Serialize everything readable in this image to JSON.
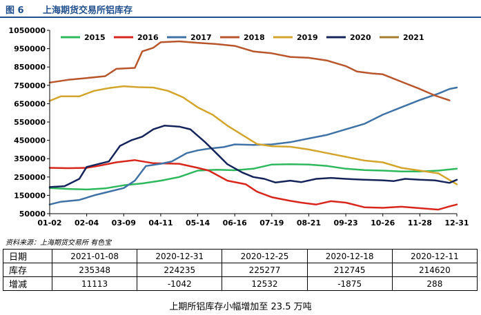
{
  "figure": {
    "number": "图 6",
    "title": "上海期货交易所铝库存",
    "source": "资料来源：上海期货交易所    有色宝",
    "caption": "上期所铝库存小幅增加至 23.5 万吨"
  },
  "chart_data": {
    "type": "line",
    "x_ticks": [
      "01-02",
      "02-04",
      "03-09",
      "04-11",
      "05-14",
      "06-16",
      "07-19",
      "08-21",
      "09-23",
      "10-26",
      "11-28",
      "12-31"
    ],
    "ylim": [
      50000,
      1050000
    ],
    "y_ticks": [
      50000,
      150000,
      250000,
      350000,
      450000,
      550000,
      650000,
      750000,
      850000,
      950000,
      1050000
    ],
    "y_tick_labels": [
      "50000",
      "150000",
      "250000",
      "350000",
      "450000",
      "550000",
      "650000",
      "750000",
      "850000",
      "950000",
      "1050000"
    ],
    "legend_position": "top",
    "grid": false,
    "series": [
      {
        "name": "2015",
        "color": "#2eb85c",
        "points": [
          [
            0,
            190000
          ],
          [
            0.5,
            185000
          ],
          [
            1,
            182000
          ],
          [
            1.5,
            188000
          ],
          [
            2,
            205000
          ],
          [
            2.5,
            215000
          ],
          [
            3,
            230000
          ],
          [
            3.5,
            250000
          ],
          [
            4,
            285000
          ],
          [
            4.5,
            290000
          ],
          [
            5,
            287000
          ],
          [
            5.5,
            295000
          ],
          [
            6,
            318000
          ],
          [
            6.5,
            320000
          ],
          [
            7,
            318000
          ],
          [
            7.5,
            310000
          ],
          [
            8,
            295000
          ],
          [
            8.5,
            288000
          ],
          [
            9,
            285000
          ],
          [
            9.5,
            280000
          ],
          [
            10,
            280000
          ],
          [
            10.5,
            285000
          ],
          [
            11,
            295000
          ]
        ]
      },
      {
        "name": "2016",
        "color": "#d9261c",
        "points": [
          [
            0,
            300000
          ],
          [
            0.5,
            298000
          ],
          [
            1,
            300000
          ],
          [
            1.3,
            310000
          ],
          [
            1.8,
            330000
          ],
          [
            2.3,
            342000
          ],
          [
            2.8,
            325000
          ],
          [
            3.5,
            322000
          ],
          [
            4,
            300000
          ],
          [
            4.3,
            285000
          ],
          [
            4.8,
            230000
          ],
          [
            5.3,
            210000
          ],
          [
            5.6,
            170000
          ],
          [
            6,
            140000
          ],
          [
            6.5,
            120000
          ],
          [
            6.8,
            110000
          ],
          [
            7.2,
            100000
          ],
          [
            7.6,
            118000
          ],
          [
            8,
            110000
          ],
          [
            8.5,
            85000
          ],
          [
            9,
            82000
          ],
          [
            9.5,
            88000
          ],
          [
            10,
            80000
          ],
          [
            10.5,
            72000
          ],
          [
            10.8,
            90000
          ],
          [
            11,
            100000
          ]
        ]
      },
      {
        "name": "2017",
        "color": "#3f72a6",
        "points": [
          [
            0,
            100000
          ],
          [
            0.3,
            115000
          ],
          [
            0.8,
            125000
          ],
          [
            1.2,
            150000
          ],
          [
            1.6,
            170000
          ],
          [
            2,
            190000
          ],
          [
            2.3,
            230000
          ],
          [
            2.6,
            310000
          ],
          [
            3,
            322000
          ],
          [
            3.3,
            335000
          ],
          [
            3.7,
            380000
          ],
          [
            4,
            395000
          ],
          [
            4.3,
            405000
          ],
          [
            4.7,
            413000
          ],
          [
            5,
            428000
          ],
          [
            5.5,
            425000
          ],
          [
            6,
            428000
          ],
          [
            6.5,
            440000
          ],
          [
            7,
            460000
          ],
          [
            7.5,
            480000
          ],
          [
            8,
            510000
          ],
          [
            8.5,
            540000
          ],
          [
            9,
            590000
          ],
          [
            9.5,
            630000
          ],
          [
            10,
            670000
          ],
          [
            10.5,
            705000
          ],
          [
            10.8,
            730000
          ],
          [
            11,
            738000
          ]
        ]
      },
      {
        "name": "2018",
        "color": "#b8552a",
        "points": [
          [
            0,
            765000
          ],
          [
            0.5,
            780000
          ],
          [
            1,
            790000
          ],
          [
            1.5,
            800000
          ],
          [
            1.8,
            840000
          ],
          [
            2.3,
            845000
          ],
          [
            2.5,
            935000
          ],
          [
            2.8,
            955000
          ],
          [
            3,
            985000
          ],
          [
            3.5,
            990000
          ],
          [
            4,
            982000
          ],
          [
            4.5,
            975000
          ],
          [
            5,
            965000
          ],
          [
            5.5,
            935000
          ],
          [
            6,
            925000
          ],
          [
            6.5,
            905000
          ],
          [
            7,
            900000
          ],
          [
            7.5,
            885000
          ],
          [
            8,
            855000
          ],
          [
            8.3,
            825000
          ],
          [
            8.7,
            815000
          ],
          [
            9,
            810000
          ],
          [
            9.5,
            770000
          ],
          [
            10,
            730000
          ],
          [
            10.4,
            695000
          ],
          [
            10.8,
            668000
          ]
        ]
      },
      {
        "name": "2019",
        "color": "#d4a52c",
        "points": [
          [
            0,
            665000
          ],
          [
            0.3,
            690000
          ],
          [
            0.8,
            690000
          ],
          [
            1.2,
            720000
          ],
          [
            1.6,
            735000
          ],
          [
            2,
            745000
          ],
          [
            2.4,
            740000
          ],
          [
            2.8,
            738000
          ],
          [
            3.2,
            720000
          ],
          [
            3.6,
            685000
          ],
          [
            4,
            630000
          ],
          [
            4.4,
            590000
          ],
          [
            4.8,
            530000
          ],
          [
            5.2,
            480000
          ],
          [
            5.6,
            430000
          ],
          [
            6,
            418000
          ],
          [
            6.5,
            415000
          ],
          [
            7,
            400000
          ],
          [
            7.5,
            380000
          ],
          [
            8,
            360000
          ],
          [
            8.5,
            340000
          ],
          [
            9,
            330000
          ],
          [
            9.5,
            300000
          ],
          [
            10,
            285000
          ],
          [
            10.5,
            270000
          ],
          [
            11,
            210000
          ]
        ]
      },
      {
        "name": "2020",
        "color": "#14245a",
        "points": [
          [
            0,
            195000
          ],
          [
            0.4,
            200000
          ],
          [
            0.8,
            240000
          ],
          [
            1,
            305000
          ],
          [
            1.3,
            320000
          ],
          [
            1.6,
            335000
          ],
          [
            1.9,
            420000
          ],
          [
            2.2,
            450000
          ],
          [
            2.5,
            470000
          ],
          [
            2.8,
            510000
          ],
          [
            3.1,
            530000
          ],
          [
            3.5,
            525000
          ],
          [
            3.8,
            510000
          ],
          [
            4.2,
            440000
          ],
          [
            4.5,
            380000
          ],
          [
            4.8,
            320000
          ],
          [
            5.2,
            275000
          ],
          [
            5.5,
            250000
          ],
          [
            5.8,
            240000
          ],
          [
            6.1,
            220000
          ],
          [
            6.5,
            230000
          ],
          [
            6.8,
            222000
          ],
          [
            7.2,
            240000
          ],
          [
            7.6,
            245000
          ],
          [
            8,
            240000
          ],
          [
            8.5,
            235000
          ],
          [
            9,
            232000
          ],
          [
            9.3,
            228000
          ],
          [
            9.6,
            240000
          ],
          [
            10,
            235000
          ],
          [
            10.4,
            232000
          ],
          [
            10.8,
            218000
          ],
          [
            11,
            235000
          ]
        ]
      },
      {
        "name": "2021",
        "color": "#a67c2e",
        "points": []
      }
    ]
  },
  "table": {
    "rows": [
      {
        "label": "日期",
        "values": [
          "2021-01-08",
          "2020-12-31",
          "2020-12-25",
          "2020-12-18",
          "2020-12-11"
        ]
      },
      {
        "label": "库存",
        "values": [
          "235348",
          "224235",
          "225277",
          "212745",
          "214620"
        ]
      },
      {
        "label": "增减",
        "values": [
          "11113",
          "-1042",
          "12532",
          "-1875",
          "288"
        ]
      }
    ]
  }
}
